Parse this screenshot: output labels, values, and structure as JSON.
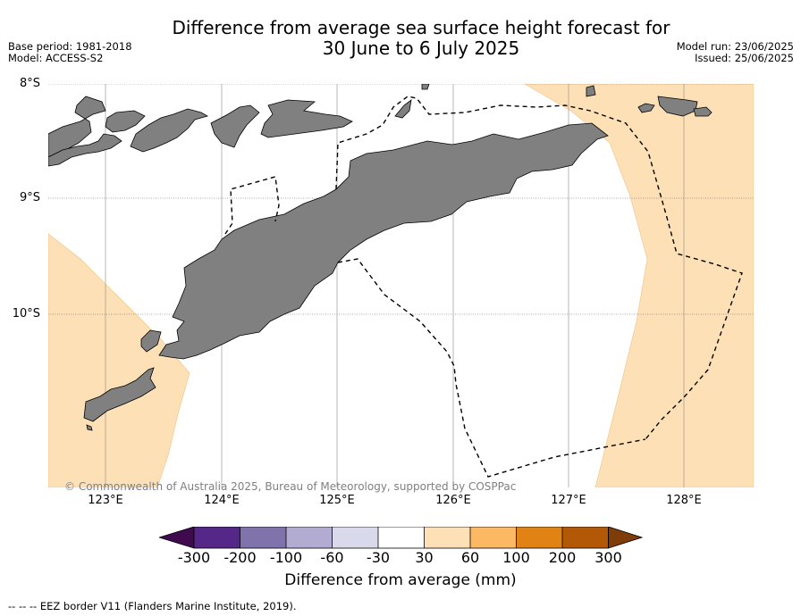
{
  "title": {
    "line1": "Difference from average sea surface height forecast for",
    "line2": "30 June to 6 July 2025"
  },
  "meta": {
    "base_period": "Base period: 1981-2018",
    "model": "Model: ACCESS-S2",
    "model_run": "Model run: 23/06/2025",
    "issued": "Issued: 25/06/2025"
  },
  "map": {
    "lat_labels": [
      "8°S",
      "9°S",
      "10°S"
    ],
    "lon_labels": [
      "123°E",
      "124°E",
      "125°E",
      "126°E",
      "127°E",
      "128°E"
    ],
    "extent": {
      "lon_min": 122.5,
      "lon_max": 128.6,
      "lat_min": -11.5,
      "lat_max": -8.0
    },
    "colors": {
      "land": "#808080",
      "anomaly_30_60": "#fee0b6",
      "ocean_neutral": "#ffffff",
      "grid": "#888888"
    },
    "copyright": "© Commonwealth of Australia 2025, Bureau of Meteorology, supported by COSPPac"
  },
  "colorbar": {
    "ticks": [
      "-300",
      "-200",
      "-100",
      "-60",
      "-30",
      "30",
      "60",
      "100",
      "200",
      "300"
    ],
    "colors": [
      "#3f0a4e",
      "#542788",
      "#8073ac",
      "#b2abd2",
      "#d8daeb",
      "#ffffff",
      "#fee0b6",
      "#fdb863",
      "#e08214",
      "#b35806",
      "#7f3b08"
    ],
    "label": "Difference from average (mm)"
  },
  "legend": {
    "eez": "--  --  -- EEZ border V11 (Flanders Marine Institute, 2019)."
  }
}
